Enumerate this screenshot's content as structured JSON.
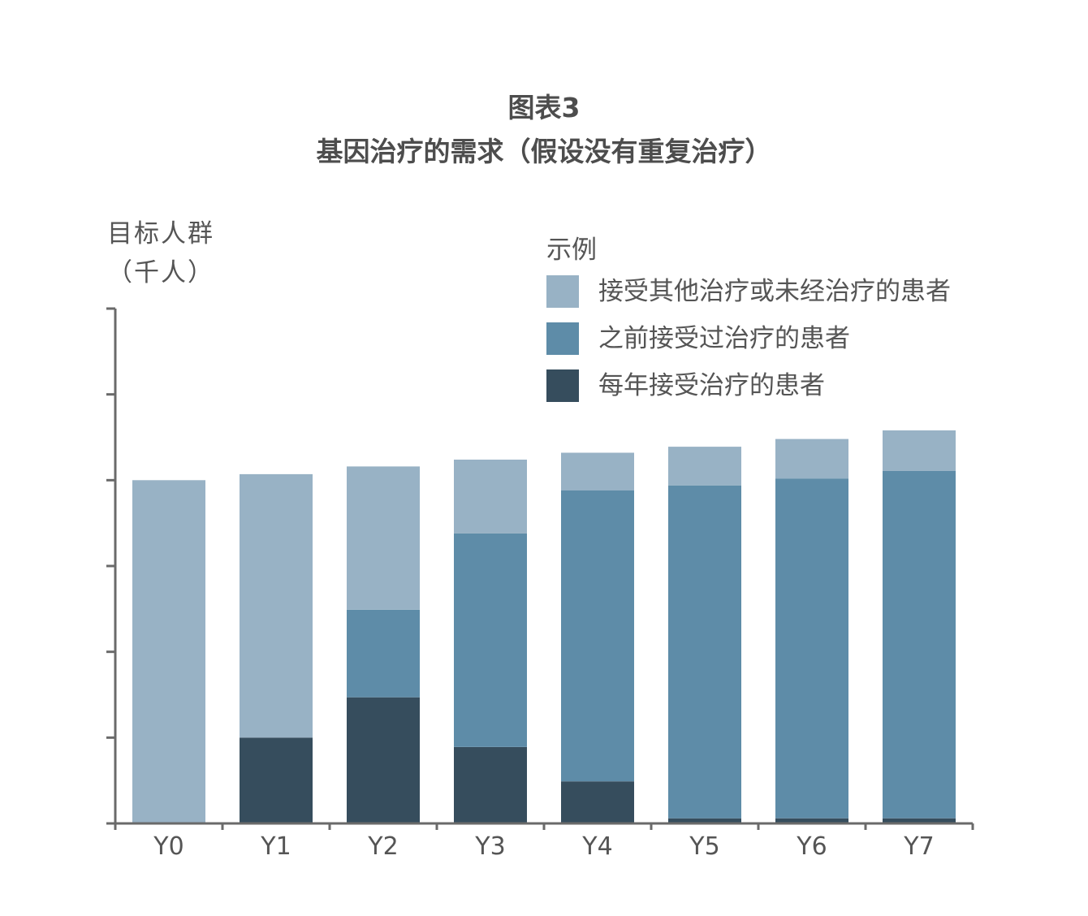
{
  "header": {
    "title": "图表3",
    "subtitle": "基因治疗的需求（假设没有重复治疗）"
  },
  "y_axis": {
    "label_line1": "目标人群",
    "label_line2": "（千人）"
  },
  "legend": {
    "title": "示例",
    "items": [
      {
        "label": "接受其他治疗或未经治疗的患者",
        "color": "#98b2c5"
      },
      {
        "label": "之前接受过治疗的患者",
        "color": "#5e8ca8"
      },
      {
        "label": "每年接受治疗的患者",
        "color": "#364d5d"
      }
    ]
  },
  "chart_data": {
    "type": "bar",
    "stacked": true,
    "title": "基因治疗的需求（假设没有重复治疗）",
    "ylabel": "目标人群（千人）",
    "ylim": [
      0,
      6
    ],
    "y_ticks": [
      0,
      1,
      2,
      3,
      4,
      5,
      6
    ],
    "y_tick_labels_shown": false,
    "categories": [
      "Y0",
      "Y1",
      "Y2",
      "Y3",
      "Y4",
      "Y5",
      "Y6",
      "Y7"
    ],
    "series": [
      {
        "name": "每年接受治疗的患者",
        "color": "#364d5d",
        "values": [
          0,
          1.0,
          1.47,
          0.89,
          0.49,
          0.06,
          0.06,
          0.06
        ]
      },
      {
        "name": "之前接受过治疗的患者",
        "color": "#5e8ca8",
        "values": [
          0,
          0,
          1.02,
          2.49,
          3.39,
          3.88,
          3.96,
          4.05
        ]
      },
      {
        "name": "接受其他治疗或未经治疗的患者",
        "color": "#98b2c5",
        "values": [
          4.0,
          3.07,
          1.67,
          0.86,
          0.44,
          0.45,
          0.46,
          0.47
        ]
      }
    ],
    "legend_position": "top-right",
    "grid": false
  }
}
